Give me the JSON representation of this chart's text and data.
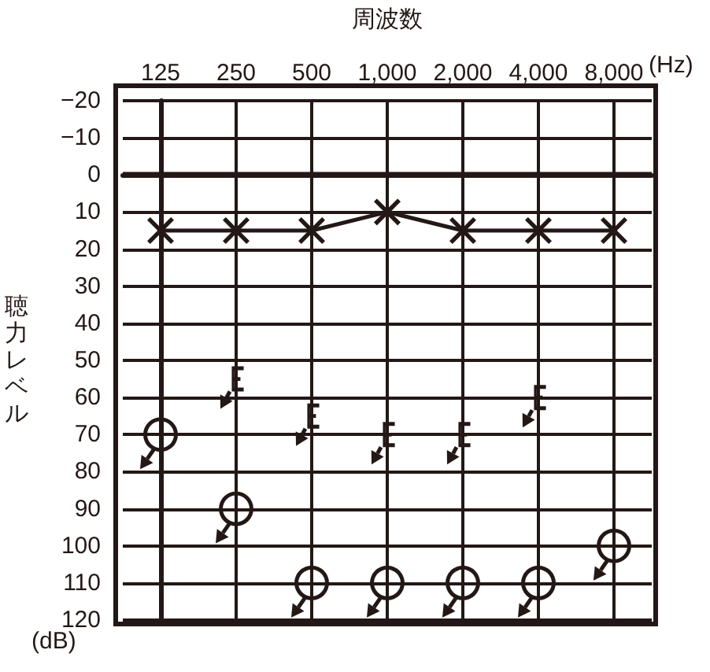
{
  "chart_data": {
    "type": "line",
    "xlabel": "周波数",
    "ylabel": "聴力レベル",
    "annotations": [
      "(Hz)",
      "(dB)"
    ],
    "categories": [
      "125",
      "250",
      "500",
      "1,000",
      "2,000",
      "4,000",
      "8,000"
    ],
    "series": [
      {
        "color": "#231815",
        "marker": "cross",
        "values": [
          15,
          15,
          15,
          10,
          15,
          15,
          15
        ]
      },
      {
        "type": "scatter",
        "color": "#231815",
        "marker": "circle",
        "values": [
          70,
          90,
          110,
          110,
          110,
          110,
          100
        ]
      },
      {
        "type": "scatter",
        "color": "#231815",
        "values": [
          null,
          55,
          65,
          70,
          70,
          60,
          null
        ]
      }
    ],
    "ylim": [
      120,
      -20
    ],
    "yticks": [
      -20,
      -10,
      0,
      10,
      20,
      30,
      40,
      50,
      60,
      70,
      80,
      90,
      100,
      110,
      120
    ],
    "ref_lines": [
      {
        "axis": "y",
        "value": 0,
        "color": "#231815"
      }
    ],
    "grid": true
  }
}
